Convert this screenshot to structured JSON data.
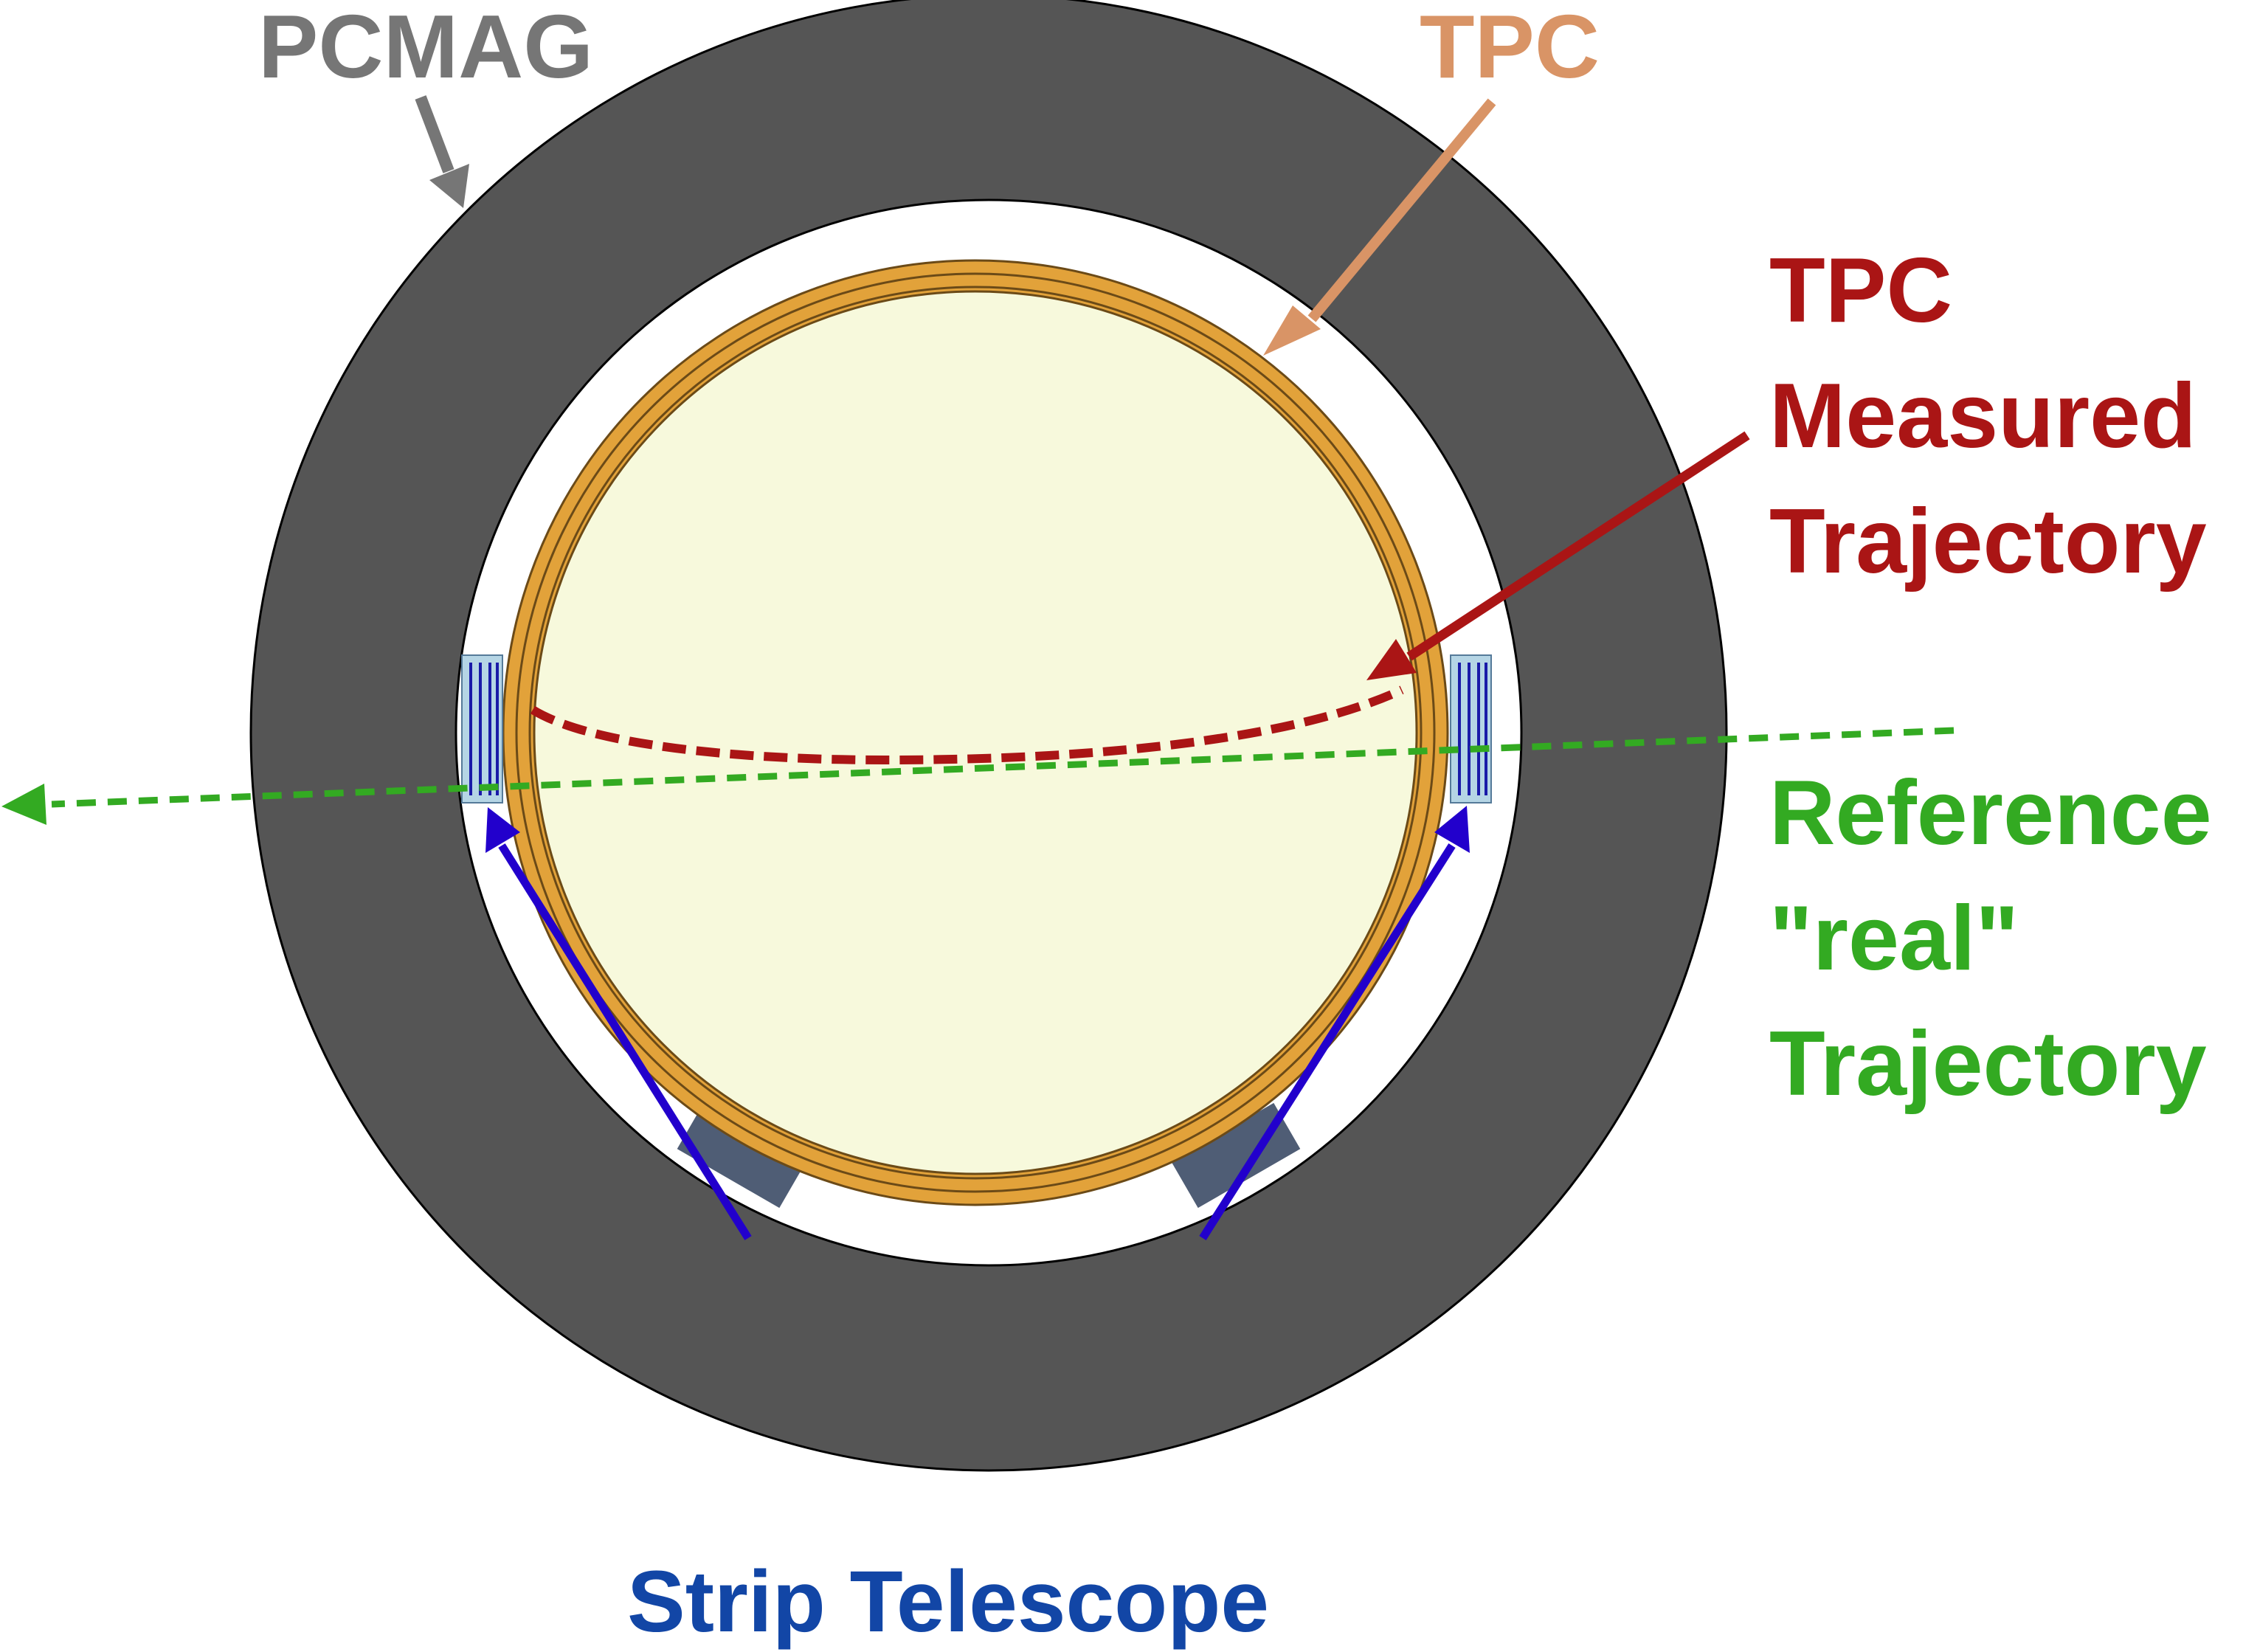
{
  "labels": {
    "pcmag": "PCMAG",
    "tpc": "TPC",
    "tpc_measured_line1": "TPC",
    "tpc_measured_line2": "Measured",
    "tpc_measured_line3": "Trajectory",
    "reference_line1": "Reference",
    "reference_line2": "\"real\"",
    "reference_line3": "Trajectory",
    "strip_telescope": "Strip Telescope"
  },
  "colors": {
    "pcmag": "#767676",
    "tpc": "#d99466",
    "tpc_measured": "#aa1515",
    "reference": "#33aa22",
    "strip_telescope": "#1246a6",
    "strip_arrow": "#2200cc",
    "magnet_ring": "#555555",
    "tpc_ring": "#e2a23a",
    "tpc_volume": "#f7f9dc",
    "telescope_box": "#b5d5e5",
    "support_block": "#4f5d75"
  }
}
